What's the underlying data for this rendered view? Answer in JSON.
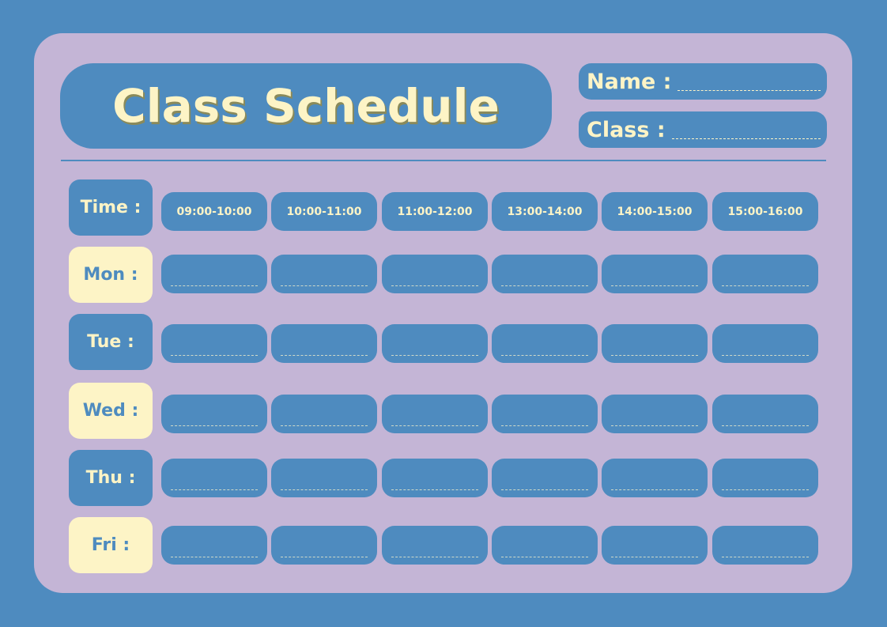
{
  "title": "Class Schedule",
  "fields": {
    "name_label": "Name :",
    "class_label": "Class :"
  },
  "time_label": "Time :",
  "time_slots": [
    "09:00-10:00",
    "10:00-11:00",
    "11:00-12:00",
    "13:00-14:00",
    "14:00-15:00",
    "15:00-16:00"
  ],
  "days": [
    "Mon :",
    "Tue :",
    "Wed :",
    "Thu :",
    "Fri :"
  ],
  "colors": {
    "background": "#4e8bbf",
    "card": "#c4b5d6",
    "cream": "#fdf4c6"
  }
}
